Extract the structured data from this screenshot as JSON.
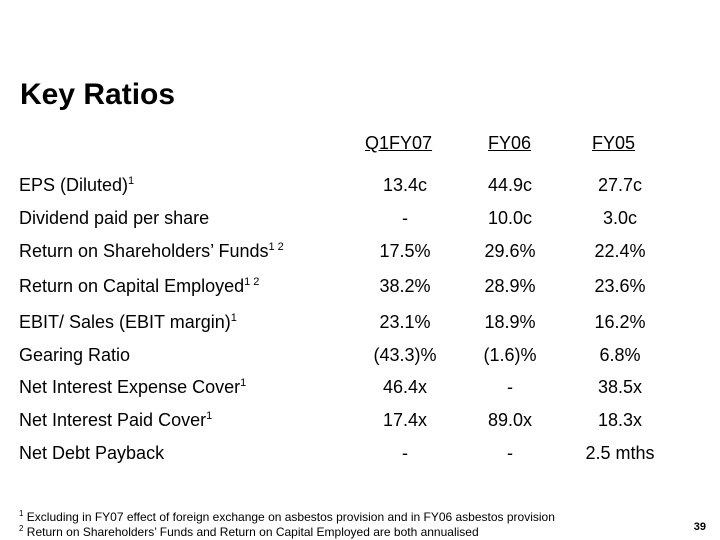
{
  "title": "Key Ratios",
  "columns": [
    "Q1FY07",
    "FY06",
    "FY05"
  ],
  "rows": [
    {
      "label": "EPS (Diluted)",
      "note": "1",
      "values": [
        "13.4c",
        "44.9c",
        "27.7c"
      ]
    },
    {
      "label": "Dividend paid per share",
      "note": "",
      "values": [
        "-",
        "10.0c",
        "3.0c"
      ]
    },
    {
      "label": "Return on Shareholders’ Funds",
      "note": "1 2",
      "values": [
        "17.5%",
        "29.6%",
        "22.4%"
      ]
    },
    {
      "label": "Return on Capital Employed",
      "note": "1 2",
      "values": [
        "38.2%",
        "28.9%",
        "23.6%"
      ]
    },
    {
      "label": "EBIT/ Sales (EBIT margin)",
      "note": "1",
      "values": [
        "23.1%",
        "18.9%",
        "16.2%"
      ]
    },
    {
      "label": "Gearing Ratio",
      "note": "",
      "values": [
        "(43.3)%",
        "(1.6)%",
        "6.8%"
      ]
    },
    {
      "label": "Net Interest Expense Cover",
      "note": "1",
      "values": [
        "46.4x",
        "-",
        "38.5x"
      ]
    },
    {
      "label": "Net Interest Paid Cover",
      "note": "1",
      "values": [
        "17.4x",
        "89.0x",
        "18.3x"
      ]
    },
    {
      "label": "Net Debt Payback",
      "note": "",
      "values": [
        "-",
        "-",
        "2.5 mths"
      ]
    }
  ],
  "footnotes": [
    {
      "mark": "1",
      "text": "Excluding in FY07 effect of foreign exchange on asbestos provision and in FY06 asbestos provision"
    },
    {
      "mark": "2",
      "text": "Return on Shareholders’ Funds and Return on Capital Employed are both annualised"
    }
  ],
  "page_number": "39"
}
